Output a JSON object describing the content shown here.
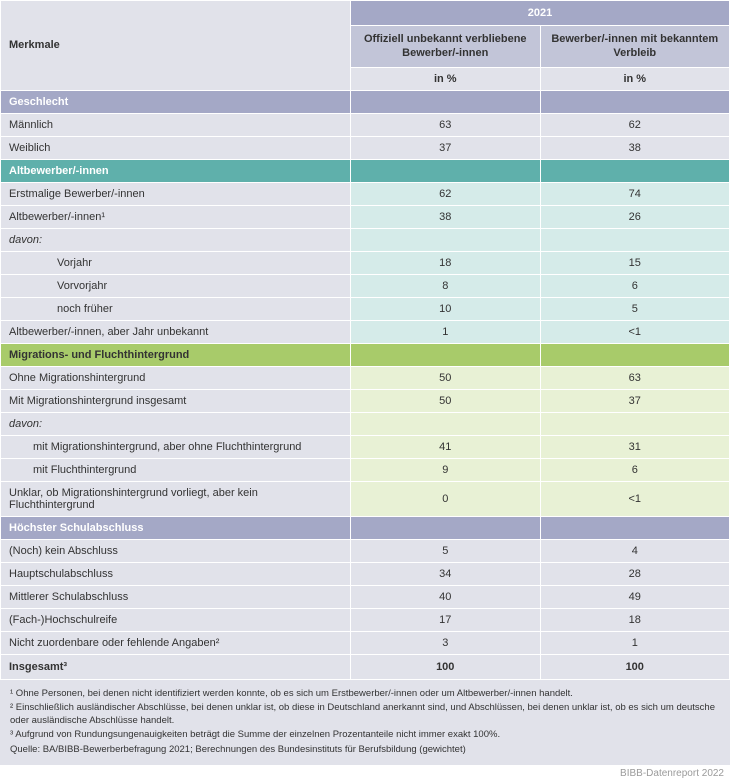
{
  "header": {
    "merkmale": "Merkmale",
    "year": "2021",
    "col1": "Offiziell unbekannt verbliebene Bewerber/-innen",
    "col2": "Bewerber/-innen mit bekanntem Verbleib",
    "unit": "in %"
  },
  "colors": {
    "section_geschlecht_bg": "#a4a8c6",
    "section_geschlecht_fg": "#ffffff",
    "geschlecht_data_bg": "#e1e2ea",
    "section_altbewerber_bg": "#5fb0ab",
    "section_altbewerber_fg": "#ffffff",
    "altbewerber_data_bg": "#d5ebe9",
    "section_migration_bg": "#a8cb6a",
    "section_migration_fg": "#333333",
    "migration_data_bg": "#e8f1d5",
    "section_schule_bg": "#a4a8c6",
    "section_schule_fg": "#ffffff",
    "schule_data_bg": "#e1e2ea"
  },
  "sections": {
    "geschlecht": {
      "title": "Geschlecht",
      "rows": [
        {
          "label": "Männlich",
          "v1": "63",
          "v2": "62"
        },
        {
          "label": "Weiblich",
          "v1": "37",
          "v2": "38"
        }
      ]
    },
    "altbewerber": {
      "title": "Altbewerber/-innen",
      "rows": [
        {
          "label": "Erstmalige Bewerber/-innen",
          "v1": "62",
          "v2": "74"
        },
        {
          "label": "Altbewerber/-innen¹",
          "v1": "38",
          "v2": "26"
        },
        {
          "label": "davon:",
          "v1": "",
          "v2": "",
          "italic": true
        },
        {
          "label": "Vorjahr",
          "v1": "18",
          "v2": "15",
          "indent": 2
        },
        {
          "label": "Vorvorjahr",
          "v1": "8",
          "v2": "6",
          "indent": 2
        },
        {
          "label": "noch früher",
          "v1": "10",
          "v2": "5",
          "indent": 2
        },
        {
          "label": "Altbewerber/-innen, aber Jahr unbekannt",
          "v1": "1",
          "v2": "<1"
        }
      ]
    },
    "migration": {
      "title": "Migrations- und Fluchthintergrund",
      "rows": [
        {
          "label": "Ohne Migrationshintergrund",
          "v1": "50",
          "v2": "63"
        },
        {
          "label": "Mit Migrationshintergrund insgesamt",
          "v1": "50",
          "v2": "37"
        },
        {
          "label": "davon:",
          "v1": "",
          "v2": "",
          "italic": true
        },
        {
          "label": "mit Migrationshintergrund, aber ohne Fluchthintergrund",
          "v1": "41",
          "v2": "31",
          "indent": 1
        },
        {
          "label": "mit Fluchthintergrund",
          "v1": "9",
          "v2": "6",
          "indent": 1
        },
        {
          "label": "Unklar, ob Migrationshintergrund vorliegt, aber kein Fluchthintergrund",
          "v1": "0",
          "v2": "<1"
        }
      ]
    },
    "schule": {
      "title": "Höchster Schulabschluss",
      "rows": [
        {
          "label": "(Noch) kein Abschluss",
          "v1": "5",
          "v2": "4"
        },
        {
          "label": "Hauptschulabschluss",
          "v1": "34",
          "v2": "28"
        },
        {
          "label": "Mittlerer Schulabschluss",
          "v1": "40",
          "v2": "49"
        },
        {
          "label": "(Fach-)Hochschulreife",
          "v1": "17",
          "v2": "18"
        },
        {
          "label": "Nicht zuordenbare oder fehlende Angaben²",
          "v1": "3",
          "v2": "1"
        }
      ]
    }
  },
  "total": {
    "label": "Insgesamt³",
    "v1": "100",
    "v2": "100"
  },
  "footnotes": {
    "f1": "¹ Ohne Personen, bei denen nicht identifiziert werden konnte, ob es sich um Erstbewerber/-innen oder um Altbewerber/-innen handelt.",
    "f2": "² Einschließlich ausländischer Abschlüsse, bei denen unklar ist, ob diese in Deutschland anerkannt sind, und Abschlüssen, bei denen unklar ist, ob es sich um deutsche oder ausländische Abschlüsse handelt.",
    "f3": "³ Aufgrund von Rundungsungenauigkeiten beträgt die Summe der einzelnen Prozentanteile nicht immer exakt 100%.",
    "source": "Quelle: BA/BIBB-Bewerberbefragung 2021; Berechnungen des Bundesinstituts für Berufsbildung (gewichtet)"
  },
  "report_tag": "BIBB-Datenreport 2022"
}
